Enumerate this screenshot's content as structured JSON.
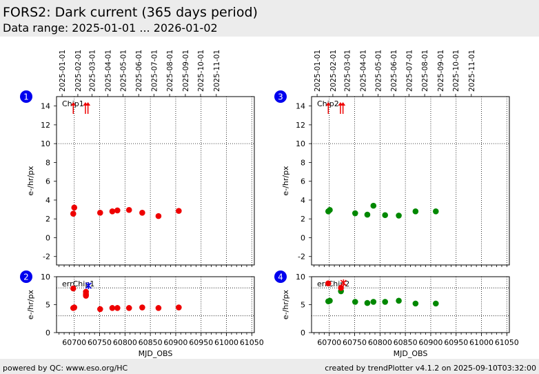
{
  "header": {
    "title": "FORS2: Dark current (365 days period)",
    "subtitle": "Data range: 2025-01-01 ... 2026-01-02"
  },
  "footer": {
    "left": "powered by QC: www.eso.org/HC",
    "right": "created by trendPlotter v4.1.2 on 2025-09-10T03:32:00"
  },
  "colors": {
    "chip1": "#ee0000",
    "chip2": "#008800",
    "badge": "#0000ee",
    "outlier": "#ee0000",
    "err_last": "#0000ee"
  },
  "chart_data": [
    {
      "id": 1,
      "badge": "1",
      "type": "scatter",
      "label": "Chip1",
      "ylabel": "e-/hr/px",
      "xlabel": "",
      "xlim": [
        60665,
        61055
      ],
      "ylim": [
        -2.9,
        15
      ],
      "yticks": [
        "-2",
        "0",
        "2",
        "4",
        "6",
        "8",
        "10",
        "12",
        "14"
      ],
      "xticks": [],
      "ref_lines": [
        10
      ],
      "date_ticks": [
        "2025-01-01",
        "2025-02-01",
        "2025-03-01",
        "2025-04-01",
        "2025-05-01",
        "2025-06-01",
        "2025-07-01",
        "2025-08-01",
        "2025-09-01",
        "2025-10-01",
        "2025-11-01"
      ],
      "color": "#ee0000",
      "x": [
        60698,
        60700,
        60751,
        60775,
        60785,
        60808,
        60834,
        60866,
        60906
      ],
      "y": [
        2.55,
        3.2,
        2.65,
        2.8,
        2.9,
        2.95,
        2.65,
        2.3,
        2.85
      ],
      "outliers_x": [
        60698,
        60722,
        60727
      ]
    },
    {
      "id": 2,
      "badge": "2",
      "type": "scatter",
      "label": "errChip1",
      "ylabel": "e-/hr/px",
      "xlabel": "MJD_OBS",
      "xlim": [
        60665,
        61055
      ],
      "ylim": [
        0,
        10
      ],
      "yticks": [
        "0",
        "5",
        "10"
      ],
      "xticks": [
        "60700",
        "60750",
        "60800",
        "60850",
        "60900",
        "60950",
        "61000",
        "61050"
      ],
      "ref_lines": [
        3,
        8
      ],
      "color": "#ee0000",
      "x": [
        60698,
        60698,
        60700,
        60723,
        60723,
        60723,
        60751,
        60775,
        60785,
        60808,
        60834,
        60866,
        60906
      ],
      "y": [
        7.9,
        4.4,
        4.5,
        7.3,
        6.9,
        6.6,
        4.2,
        4.4,
        4.4,
        4.4,
        4.5,
        4.4,
        4.5
      ],
      "star_x": [
        60728
      ],
      "star_y": [
        8.4
      ]
    },
    {
      "id": 3,
      "badge": "3",
      "type": "scatter",
      "label": "Chip2",
      "ylabel": "e-/hr/px",
      "xlabel": "",
      "xlim": [
        60665,
        61055
      ],
      "ylim": [
        -2.9,
        15
      ],
      "yticks": [
        "-2",
        "0",
        "2",
        "4",
        "6",
        "8",
        "10",
        "12",
        "14"
      ],
      "xticks": [],
      "ref_lines": [
        10
      ],
      "date_ticks": [
        "2025-01-01",
        "2025-02-01",
        "2025-03-01",
        "2025-04-01",
        "2025-05-01",
        "2025-06-01",
        "2025-07-01",
        "2025-08-01",
        "2025-09-01",
        "2025-10-01",
        "2025-11-01"
      ],
      "color": "#008800",
      "x": [
        60698,
        60701,
        60751,
        60775,
        60787,
        60810,
        60837,
        60870,
        60910
      ],
      "y": [
        2.8,
        2.95,
        2.6,
        2.45,
        3.4,
        2.4,
        2.35,
        2.8,
        2.8
      ],
      "outliers_x": [
        60698,
        60722,
        60727
      ]
    },
    {
      "id": 4,
      "badge": "4",
      "type": "scatter",
      "label": "errChip2",
      "ylabel": "e-/hr/px",
      "xlabel": "MJD_OBS",
      "xlim": [
        60665,
        61055
      ],
      "ylim": [
        0,
        10
      ],
      "yticks": [
        "0",
        "5",
        "10"
      ],
      "xticks": [
        "60700",
        "60750",
        "60800",
        "60850",
        "60900",
        "60950",
        "61000",
        "61050"
      ],
      "ref_lines": [
        3,
        8
      ],
      "color": "#008800",
      "x": [
        60698,
        60701,
        60723,
        60751,
        60775,
        60787,
        60810,
        60837,
        60870,
        60910
      ],
      "y": [
        5.6,
        5.7,
        7.4,
        5.5,
        5.3,
        5.5,
        5.5,
        5.7,
        5.2,
        5.2
      ],
      "red_x": [
        60698,
        60723
      ],
      "red_y": [
        8.8,
        8.0
      ],
      "star_x": [
        60728
      ],
      "star_y": [
        8.9
      ]
    }
  ]
}
